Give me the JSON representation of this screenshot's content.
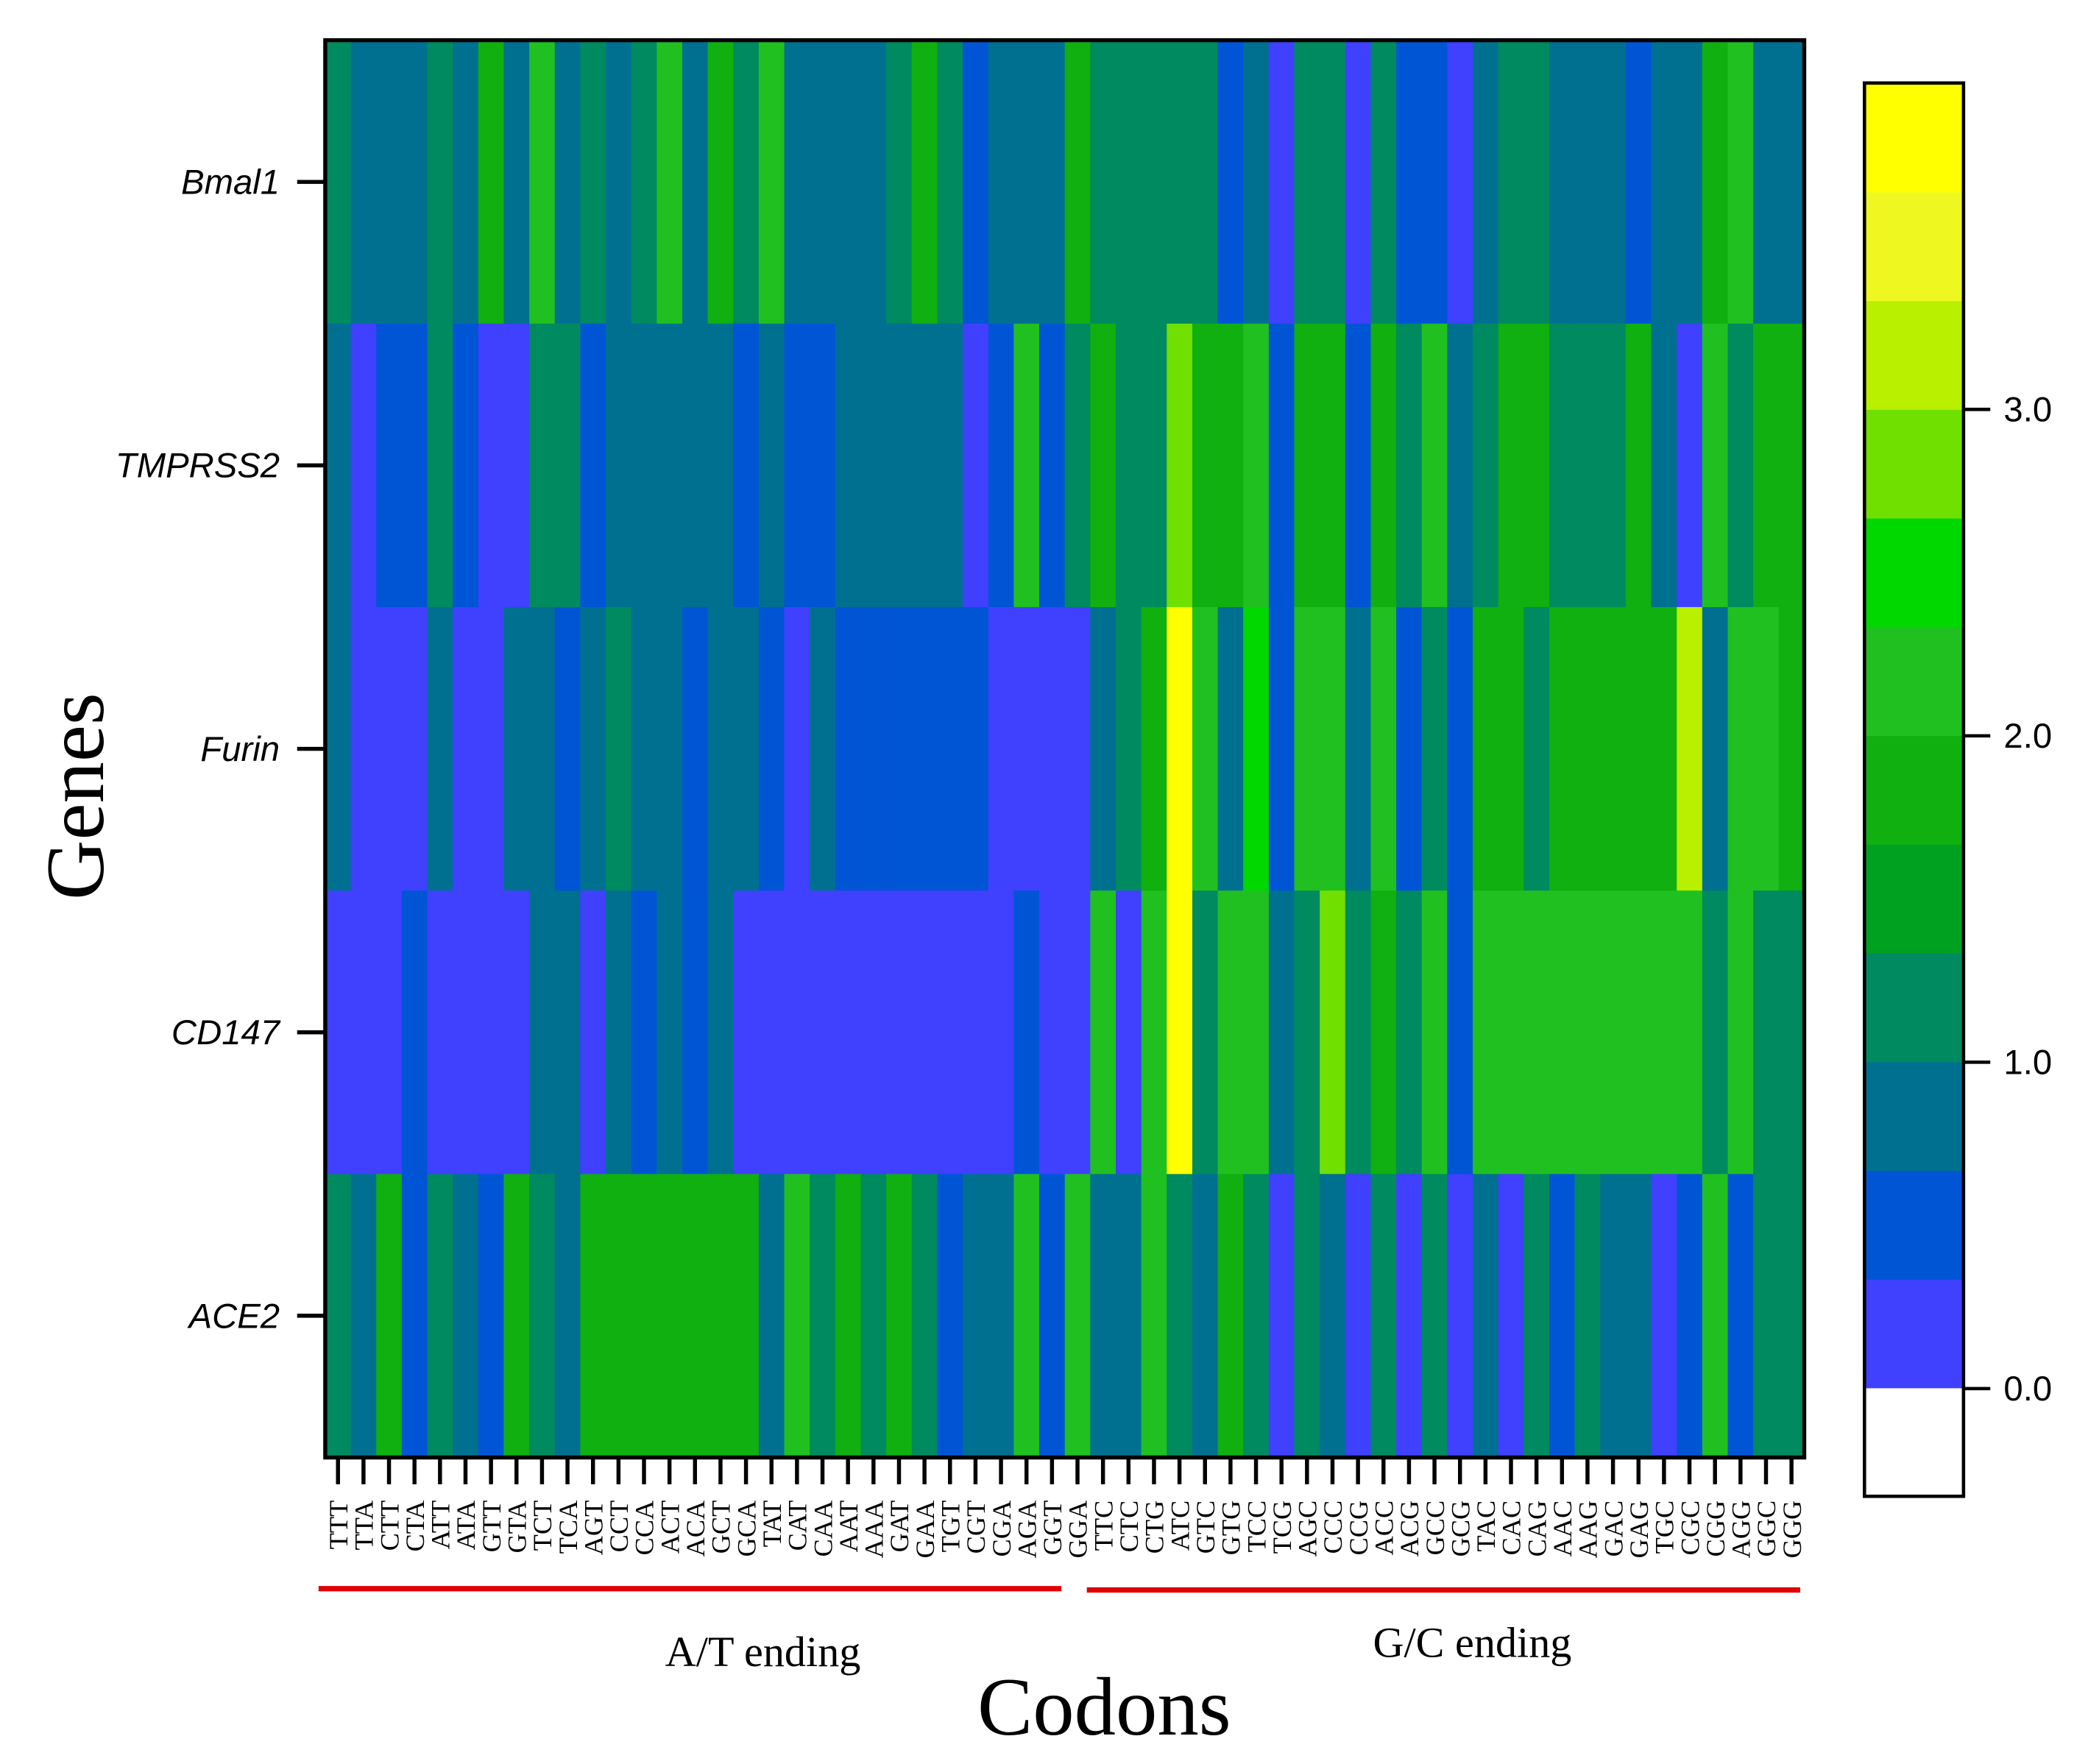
{
  "chart_data": {
    "type": "heatmap",
    "x_label": "Codons",
    "y_label": "Genes",
    "group_labels": [
      "A/T ending",
      "G/C ending"
    ],
    "categories": [
      "TTT",
      "TTA",
      "CTT",
      "CTA",
      "ATT",
      "ATA",
      "GTT",
      "GTA",
      "TCT",
      "TCA",
      "AGT",
      "CCT",
      "CCA",
      "ACT",
      "ACA",
      "GCT",
      "GCA",
      "TAT",
      "CAT",
      "CAA",
      "AAT",
      "AAA",
      "GAT",
      "GAA",
      "TGT",
      "CGT",
      "CGA",
      "AGA",
      "GGT",
      "GGA",
      "TTC",
      "CTC",
      "CTG",
      "ATC",
      "GTC",
      "GTG",
      "TCC",
      "TCG",
      "AGC",
      "CCC",
      "CCG",
      "ACC",
      "ACG",
      "GCC",
      "GCG",
      "TAC",
      "CAC",
      "CAG",
      "AAC",
      "AAG",
      "GAC",
      "GAG",
      "TGC",
      "CGC",
      "CGG",
      "AGG",
      "GGC",
      "GGG"
    ],
    "rows": [
      "Bmal1",
      "TMPRSS2",
      "Furin",
      "CD147",
      "ACE2"
    ],
    "values": [
      [
        1.15,
        0.85,
        0.85,
        0.85,
        1.15,
        0.85,
        1.85,
        0.85,
        2.3,
        0.85,
        1.15,
        0.85,
        1.15,
        2.2,
        0.85,
        1.8,
        1.15,
        2.2,
        0.85,
        0.85,
        0.85,
        0.85,
        1.15,
        1.8,
        1.15,
        0.5,
        0.85,
        0.85,
        0.85,
        1.8,
        1.15,
        1.15,
        1.15,
        1.15,
        1.15,
        0.5,
        0.85,
        0.2,
        1.15,
        1.15,
        0.2,
        1.15,
        0.5,
        0.5,
        0.2,
        0.85,
        1.15,
        1.15,
        0.85,
        0.85,
        0.85,
        0.5,
        0.85,
        0.85,
        1.8,
        2.2,
        0.85,
        0.85
      ],
      [
        0.85,
        0.2,
        0.5,
        0.5,
        1.15,
        0.5,
        0.2,
        0.2,
        1.15,
        1.15,
        0.5,
        0.85,
        0.85,
        0.85,
        0.85,
        0.85,
        0.5,
        0.85,
        0.5,
        0.5,
        0.85,
        0.85,
        0.85,
        0.85,
        0.85,
        0.2,
        0.5,
        2.3,
        0.5,
        1.15,
        1.8,
        1.15,
        1.15,
        2.9,
        1.8,
        1.8,
        2.1,
        0.6,
        1.8,
        1.8,
        0.5,
        1.8,
        1.15,
        2.2,
        0.85,
        1.15,
        1.8,
        1.8,
        1.15,
        1.15,
        1.15,
        1.8,
        0.85,
        0.2,
        2.2,
        1.15,
        1.8,
        1.8
      ],
      [
        0.85,
        0.2,
        0.2,
        0.2,
        0.85,
        0.2,
        0.2,
        0.85,
        0.85,
        0.5,
        0.85,
        1.15,
        0.85,
        0.85,
        0.5,
        0.85,
        0.85,
        0.5,
        0.2,
        0.85,
        0.5,
        0.5,
        0.5,
        0.5,
        0.5,
        0.5,
        0.2,
        0.2,
        0.2,
        0.2,
        0.85,
        1.15,
        2.0,
        3.85,
        2.3,
        0.85,
        2.4,
        0.5,
        2.3,
        2.3,
        0.85,
        2.2,
        0.5,
        1.15,
        0.5,
        1.8,
        1.8,
        1.15,
        1.8,
        1.8,
        1.8,
        1.8,
        1.8,
        3.2,
        0.85,
        2.1,
        2.2,
        1.8
      ],
      [
        0.2,
        0.2,
        0.2,
        0.5,
        0.2,
        0.2,
        0.2,
        0.2,
        0.85,
        0.85,
        0.2,
        0.85,
        0.5,
        0.85,
        0.5,
        0.85,
        0.2,
        0.2,
        0.2,
        0.2,
        0.2,
        0.2,
        0.2,
        0.2,
        0.2,
        0.2,
        0.2,
        0.5,
        0.2,
        0.2,
        2.3,
        0.2,
        2.2,
        3.85,
        1.15,
        2.1,
        2.1,
        0.85,
        1.15,
        2.8,
        1.15,
        1.8,
        1.15,
        2.3,
        0.5,
        2.2,
        2.2,
        2.2,
        2.2,
        2.2,
        2.2,
        2.2,
        2.2,
        2.3,
        1.15,
        2.3,
        1.15,
        1.15
      ],
      [
        1.15,
        0.85,
        1.8,
        0.5,
        1.15,
        0.85,
        0.5,
        1.8,
        1.15,
        0.85,
        1.8,
        1.8,
        1.8,
        1.8,
        2.0,
        1.8,
        2.0,
        0.85,
        2.1,
        1.15,
        1.8,
        1.15,
        1.8,
        1.15,
        0.5,
        0.85,
        0.85,
        2.2,
        0.5,
        2.2,
        0.85,
        0.85,
        2.2,
        1.15,
        0.85,
        1.8,
        1.15,
        0.2,
        1.15,
        0.85,
        0.2,
        1.15,
        0.2,
        1.15,
        0.2,
        0.85,
        0.2,
        1.15,
        0.5,
        1.15,
        0.85,
        0.85,
        0.2,
        0.5,
        2.2,
        0.5,
        1.15,
        1.15
      ]
    ],
    "colors": [
      "#ffffff",
      "#4040ff",
      "#0055d5",
      "#007090",
      "#008a60",
      "#00a020",
      "#10b010",
      "#20c020",
      "#00d800",
      "#70e000",
      "#b8f000",
      "#eef820",
      "#ffff00"
    ],
    "clim": [
      -0.33,
      4
    ],
    "cticks": [
      {
        "value": 0,
        "label": "0.0"
      },
      {
        "value": 1,
        "label": "1.0"
      },
      {
        "value": 2,
        "label": "2.0"
      },
      {
        "value": 3,
        "label": "3.0"
      }
    ]
  }
}
